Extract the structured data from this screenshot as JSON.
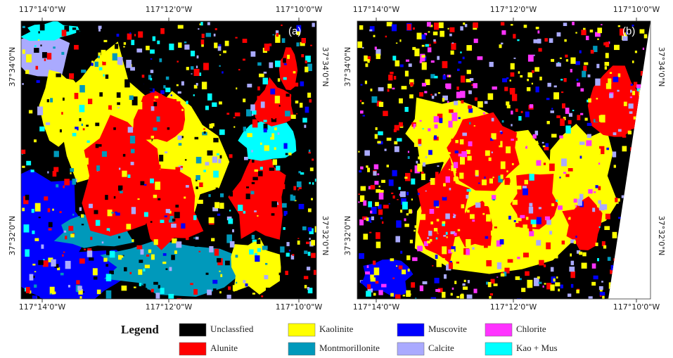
{
  "panels": [
    {
      "label": "(a)",
      "top_labels": [
        "117°14'0\"W",
        "117°12'0\"W",
        "117°10'0\"W"
      ],
      "bottom_labels": [
        "117°14'0\"W",
        "117°12'0\"W",
        "117°10'0\"W"
      ],
      "left_labels": [
        "37°34'0\"N",
        "37°32'0\"N"
      ],
      "right_labels": [
        "37°34'0\"N",
        "37°32'0\"N"
      ]
    },
    {
      "label": "(b)",
      "top_labels": [
        "117°14'0\"W",
        "117°12'0\"W",
        "117°10'0\"W"
      ],
      "bottom_labels": [
        "117°14'0\"W",
        "117°12'0\"W",
        "117°10'0\"W"
      ],
      "left_labels": [
        "37°34'0\"N",
        "37°32'0\"N"
      ],
      "right_labels": [
        "37°34'0\"N",
        "37°32'0\"N"
      ]
    }
  ],
  "legend": {
    "title": "Legend",
    "items": [
      {
        "label": "Unclassfied",
        "color": "#000000"
      },
      {
        "label": "Alunite",
        "color": "#ff0000"
      },
      {
        "label": "Kaolinite",
        "color": "#ffff00"
      },
      {
        "label": "Montmorillonite",
        "color": "#0099bb"
      },
      {
        "label": "Muscovite",
        "color": "#0000ff"
      },
      {
        "label": "Calcite",
        "color": "#aaaaff"
      },
      {
        "label": "Chlorite",
        "color": "#ff33ff"
      },
      {
        "label": "Kao + Mus",
        "color": "#00ffff"
      }
    ]
  }
}
